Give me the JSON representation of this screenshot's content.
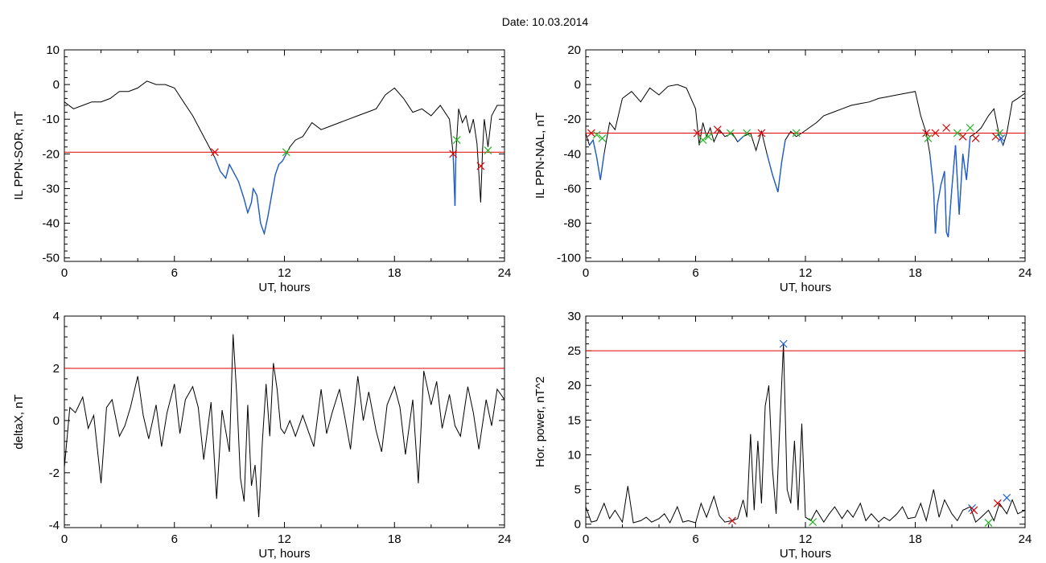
{
  "title": "Date:  10.03.2014",
  "colors": {
    "trace": "#000000",
    "highlight": "#1f5fc8",
    "threshold": "#e00000",
    "cross_red": "#e00000",
    "cross_green": "#22b522",
    "cross_blue": "#2060d0"
  },
  "chart_data": [
    {
      "type": "line",
      "title": "",
      "xlabel": "UT, hours",
      "ylabel": "IL PPN-SOR, nT",
      "xlim": [
        0,
        24
      ],
      "ylim": [
        -51,
        10
      ],
      "xticks": [
        "0",
        "6",
        "12",
        "18",
        "24"
      ],
      "yticks": [
        "10",
        "0",
        "-10",
        "-20",
        "-30",
        "-40",
        "-50"
      ],
      "ytick_values": [
        10,
        0,
        -10,
        -20,
        -30,
        -40,
        -50
      ],
      "threshold": -19.5,
      "series": [
        {
          "x": [
            0,
            0.5,
            1,
            1.5,
            2,
            2.5,
            3,
            3.5,
            4,
            4.5,
            5,
            5.5,
            6,
            6.5,
            7,
            7.5,
            8,
            8.2,
            8.5,
            8.8,
            9,
            9.2,
            9.5,
            9.8,
            10,
            10.2,
            10.3,
            10.5,
            10.7,
            10.9,
            11.1,
            11.3,
            11.5,
            11.7,
            11.9,
            12.1,
            12.3,
            12.6,
            13,
            13.5,
            14,
            14.5,
            15,
            15.5,
            16,
            16.5,
            17,
            17.5,
            18,
            18.5,
            19,
            19.5,
            20,
            20.5,
            21,
            21.2,
            21.3,
            21.35,
            21.5,
            21.7,
            21.9,
            22.1,
            22.3,
            22.5,
            22.7,
            22.8,
            22.9,
            23.1,
            23.3,
            23.6,
            24
          ],
          "values": [
            -5,
            -7,
            -6,
            -5,
            -5,
            -4,
            -2,
            -2,
            -1,
            1,
            0,
            0,
            -1,
            -5,
            -9,
            -14,
            -19,
            -21,
            -25,
            -27,
            -23,
            -25,
            -28,
            -33,
            -37,
            -34,
            -30,
            -32,
            -40,
            -43,
            -38,
            -32,
            -26,
            -23,
            -22,
            -20,
            -18,
            -16,
            -15,
            -11,
            -13,
            -12,
            -11,
            -10,
            -9,
            -8,
            -7,
            -3,
            -1,
            -4,
            -8,
            -7,
            -9,
            -6,
            -10,
            -20,
            -35,
            -20,
            -7,
            -11,
            -9,
            -14,
            -10,
            -17,
            -34,
            -19,
            -10,
            -18,
            -9,
            -6,
            -6
          ]
        }
      ],
      "crosses": [
        {
          "x": 8.2,
          "y": -19.5,
          "color": "red"
        },
        {
          "x": 12.1,
          "y": -19.5,
          "color": "green"
        },
        {
          "x": 21.2,
          "y": -20,
          "color": "red"
        },
        {
          "x": 21.4,
          "y": -16,
          "color": "green"
        },
        {
          "x": 22.7,
          "y": -23.5,
          "color": "red"
        },
        {
          "x": 23.1,
          "y": -19,
          "color": "green"
        }
      ]
    },
    {
      "type": "line",
      "title": "",
      "xlabel": "UT, hours",
      "ylabel": "IL PPN-NAL, nT",
      "xlim": [
        0,
        24
      ],
      "ylim": [
        -102,
        20
      ],
      "xticks": [
        "0",
        "6",
        "12",
        "18",
        "24"
      ],
      "yticks": [
        "20",
        "0",
        "-20",
        "-40",
        "-60",
        "-80",
        "-100"
      ],
      "ytick_values": [
        20,
        0,
        -20,
        -40,
        -60,
        -80,
        -100
      ],
      "threshold": -28,
      "series": [
        {
          "x": [
            0,
            0.2,
            0.4,
            0.6,
            0.8,
            1,
            1.3,
            1.6,
            2,
            2.5,
            3,
            3.5,
            4,
            4.5,
            5,
            5.5,
            6,
            6.2,
            6.4,
            6.6,
            6.8,
            7,
            7.3,
            7.6,
            8,
            8.3,
            8.6,
            9,
            9.3,
            9.6,
            9.9,
            10.2,
            10.5,
            10.7,
            10.9,
            11.2,
            11.5,
            11.8,
            12.2,
            12.6,
            13,
            13.5,
            14,
            14.5,
            15,
            15.5,
            16,
            16.5,
            17,
            17.5,
            18,
            18.3,
            18.6,
            18.8,
            19,
            19.1,
            19.2,
            19.4,
            19.6,
            19.7,
            19.8,
            20,
            20.2,
            20.4,
            20.6,
            20.8,
            21,
            21.3,
            21.6,
            22,
            22.3,
            22.6,
            22.8,
            23,
            23.3,
            23.6,
            24
          ],
          "values": [
            -28,
            -35,
            -32,
            -42,
            -55,
            -40,
            -22,
            -26,
            -8,
            -4,
            -10,
            -2,
            -6,
            -1,
            0,
            -2,
            -14,
            -35,
            -22,
            -30,
            -25,
            -33,
            -26,
            -30,
            -28,
            -33,
            -30,
            -28,
            -38,
            -27,
            -40,
            -52,
            -62,
            -45,
            -32,
            -27,
            -30,
            -28,
            -25,
            -22,
            -18,
            -16,
            -14,
            -12,
            -11,
            -10,
            -8,
            -7,
            -6,
            -5,
            -4,
            -18,
            -28,
            -40,
            -60,
            -86,
            -70,
            -58,
            -50,
            -85,
            -88,
            -60,
            -35,
            -75,
            -40,
            -55,
            -30,
            -28,
            -25,
            -18,
            -14,
            -30,
            -35,
            -28,
            -10,
            -8,
            -5
          ]
        }
      ],
      "crosses": [
        {
          "x": 0.3,
          "y": -28,
          "color": "red"
        },
        {
          "x": 0.6,
          "y": -29,
          "color": "green"
        },
        {
          "x": 0.9,
          "y": -31,
          "color": "green"
        },
        {
          "x": 6.1,
          "y": -28,
          "color": "red"
        },
        {
          "x": 6.4,
          "y": -32,
          "color": "green"
        },
        {
          "x": 6.7,
          "y": -30,
          "color": "green"
        },
        {
          "x": 7.2,
          "y": -26,
          "color": "red"
        },
        {
          "x": 7.9,
          "y": -28,
          "color": "green"
        },
        {
          "x": 8.8,
          "y": -28,
          "color": "green"
        },
        {
          "x": 9.6,
          "y": -28,
          "color": "red"
        },
        {
          "x": 11.5,
          "y": -28,
          "color": "green"
        },
        {
          "x": 18.6,
          "y": -28,
          "color": "red"
        },
        {
          "x": 18.7,
          "y": -31,
          "color": "green"
        },
        {
          "x": 19.1,
          "y": -28,
          "color": "red"
        },
        {
          "x": 19.7,
          "y": -25,
          "color": "red"
        },
        {
          "x": 20.3,
          "y": -28,
          "color": "green"
        },
        {
          "x": 20.6,
          "y": -30,
          "color": "red"
        },
        {
          "x": 21.0,
          "y": -25,
          "color": "green"
        },
        {
          "x": 21.3,
          "y": -31,
          "color": "red"
        },
        {
          "x": 22.4,
          "y": -30,
          "color": "red"
        },
        {
          "x": 22.6,
          "y": -28,
          "color": "green"
        },
        {
          "x": 22.7,
          "y": -31,
          "color": "blue"
        }
      ]
    },
    {
      "type": "line",
      "title": "",
      "xlabel": "UT, hours",
      "ylabel": "deltaX, nT",
      "xlim": [
        0,
        24
      ],
      "ylim": [
        -4.1,
        4
      ],
      "xticks": [
        "0",
        "6",
        "12",
        "18",
        "24"
      ],
      "yticks": [
        "4",
        "2",
        "0",
        "-2",
        "-4"
      ],
      "ytick_values": [
        4,
        2,
        0,
        -2,
        -4
      ],
      "threshold": 2,
      "series": [
        {
          "x": [
            0,
            0.3,
            0.6,
            1,
            1.3,
            1.6,
            2,
            2.3,
            2.6,
            3,
            3.3,
            3.6,
            4,
            4.3,
            4.6,
            5,
            5.3,
            5.6,
            6,
            6.3,
            6.6,
            7,
            7.3,
            7.6,
            8,
            8.3,
            8.6,
            9,
            9.2,
            9.4,
            9.6,
            9.8,
            10,
            10.2,
            10.4,
            10.6,
            10.8,
            11,
            11.2,
            11.4,
            11.6,
            11.8,
            12,
            12.3,
            12.6,
            13,
            13.3,
            13.6,
            14,
            14.3,
            14.6,
            15,
            15.3,
            15.6,
            16,
            16.3,
            16.6,
            17,
            17.3,
            17.6,
            18,
            18.3,
            18.6,
            19,
            19.3,
            19.6,
            20,
            20.3,
            20.6,
            21,
            21.3,
            21.6,
            22,
            22.3,
            22.6,
            23,
            23.3,
            23.6,
            24
          ],
          "values": [
            -1.8,
            0.5,
            0.3,
            0.9,
            -0.3,
            0.2,
            -2.4,
            0.5,
            0.8,
            -0.6,
            -0.2,
            0.5,
            1.7,
            0.2,
            -0.7,
            0.6,
            -1.0,
            0.3,
            1.4,
            -0.5,
            0.8,
            1.3,
            0.5,
            -1.5,
            0.7,
            -3.0,
            0.4,
            -1.2,
            3.3,
            1.0,
            -2.2,
            -3.1,
            0.6,
            -2.5,
            -1.7,
            -3.7,
            -0.8,
            1.4,
            -0.6,
            2.2,
            1.2,
            -0.3,
            -0.5,
            0.0,
            -0.6,
            0.2,
            -0.4,
            -1.0,
            1.2,
            -0.5,
            0.3,
            1.2,
            0.1,
            -1.1,
            1.7,
            0.0,
            1.1,
            -0.4,
            -1.2,
            0.6,
            1.3,
            0.5,
            -1.3,
            0.8,
            -2.4,
            1.9,
            0.6,
            1.5,
            -0.3,
            1.0,
            -0.2,
            -0.6,
            1.3,
            0.3,
            -1.1,
            0.8,
            -0.2,
            1.2,
            0.8
          ]
        }
      ],
      "crosses": []
    },
    {
      "type": "line",
      "title": "",
      "xlabel": "UT, hours",
      "ylabel": "Hor. power, nT^2",
      "xlim": [
        0,
        24
      ],
      "ylim": [
        -0.5,
        30
      ],
      "xticks": [
        "0",
        "6",
        "12",
        "18",
        "24"
      ],
      "yticks": [
        "30",
        "25",
        "20",
        "15",
        "10",
        "5",
        "0"
      ],
      "ytick_values": [
        30,
        25,
        20,
        15,
        10,
        5,
        0
      ],
      "threshold": 25,
      "series": [
        {
          "x": [
            0,
            0.3,
            0.6,
            1,
            1.3,
            1.6,
            2,
            2.3,
            2.6,
            3,
            3.3,
            3.6,
            4,
            4.3,
            4.6,
            5,
            5.3,
            5.6,
            6,
            6.3,
            6.6,
            7,
            7.3,
            7.6,
            8,
            8.3,
            8.6,
            8.8,
            9,
            9.2,
            9.4,
            9.6,
            9.8,
            10,
            10.2,
            10.4,
            10.6,
            10.8,
            11,
            11.2,
            11.4,
            11.6,
            11.8,
            12,
            12.3,
            12.6,
            13,
            13.3,
            13.6,
            14,
            14.3,
            14.6,
            15,
            15.3,
            15.6,
            16,
            16.3,
            16.6,
            17,
            17.3,
            17.6,
            18,
            18.3,
            18.6,
            19,
            19.3,
            19.6,
            20,
            20.3,
            20.6,
            21,
            21.3,
            21.6,
            22,
            22.3,
            22.6,
            23,
            23.3,
            23.6,
            24
          ],
          "values": [
            2.5,
            0.3,
            0.5,
            3.0,
            0.8,
            2.0,
            0.3,
            5.5,
            0.2,
            0.5,
            1.0,
            0.3,
            0.8,
            1.5,
            0.2,
            2.5,
            0.3,
            0.5,
            0.2,
            3.0,
            1.0,
            4.0,
            1.2,
            0.3,
            0.5,
            0.8,
            3.5,
            1.0,
            13.0,
            2.0,
            12.0,
            3.0,
            17.0,
            20.0,
            8.0,
            1.5,
            14.0,
            26.0,
            5.0,
            3.0,
            12.0,
            2.0,
            14.5,
            1.0,
            0.5,
            2.0,
            0.3,
            1.5,
            2.5,
            0.8,
            2.0,
            1.0,
            3.0,
            0.5,
            1.5,
            0.3,
            1.0,
            0.5,
            1.5,
            2.5,
            0.8,
            1.0,
            3.0,
            0.5,
            5.0,
            1.0,
            3.5,
            1.5,
            0.5,
            2.0,
            2.5,
            0.3,
            1.0,
            2.0,
            0.5,
            3.0,
            1.5,
            3.5,
            1.5,
            2.0
          ]
        }
      ],
      "crosses": [
        {
          "x": 8.0,
          "y": 0.5,
          "color": "red"
        },
        {
          "x": 10.8,
          "y": 26,
          "color": "blue"
        },
        {
          "x": 12.4,
          "y": 0.3,
          "color": "green"
        },
        {
          "x": 21.1,
          "y": 2.3,
          "color": "blue"
        },
        {
          "x": 21.2,
          "y": 2.0,
          "color": "red"
        },
        {
          "x": 22.0,
          "y": 0.2,
          "color": "green"
        },
        {
          "x": 22.5,
          "y": 3.0,
          "color": "red"
        },
        {
          "x": 23.0,
          "y": 3.8,
          "color": "blue"
        }
      ]
    }
  ]
}
